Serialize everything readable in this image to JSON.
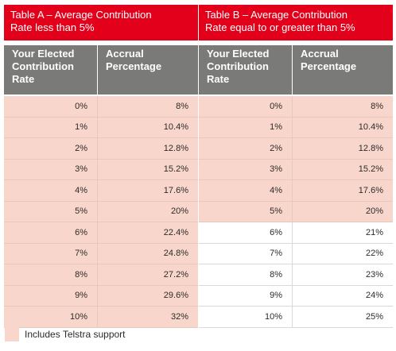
{
  "tableA": {
    "title_line1": "Table A – Average Contribution",
    "title_line2": "Rate less than 5%",
    "col1_line1": "Your Elected",
    "col1_line2": "Contribution",
    "col1_line3": "Rate",
    "col2_line1": "Accrual",
    "col2_line2": "Percentage",
    "rows": [
      {
        "rate": "0%",
        "accrual": "8%",
        "shaded": true
      },
      {
        "rate": "1%",
        "accrual": "10.4%",
        "shaded": true
      },
      {
        "rate": "2%",
        "accrual": "12.8%",
        "shaded": true
      },
      {
        "rate": "3%",
        "accrual": "15.2%",
        "shaded": true
      },
      {
        "rate": "4%",
        "accrual": "17.6%",
        "shaded": true
      },
      {
        "rate": "5%",
        "accrual": "20%",
        "shaded": true
      },
      {
        "rate": "6%",
        "accrual": "22.4%",
        "shaded": true
      },
      {
        "rate": "7%",
        "accrual": "24.8%",
        "shaded": true
      },
      {
        "rate": "8%",
        "accrual": "27.2%",
        "shaded": true
      },
      {
        "rate": "9%",
        "accrual": "29.6%",
        "shaded": true
      },
      {
        "rate": "10%",
        "accrual": "32%",
        "shaded": true
      }
    ]
  },
  "tableB": {
    "title_line1": "Table B – Average Contribution",
    "title_line2": "Rate equal to or greater than 5%",
    "col1_line1": "Your Elected",
    "col1_line2": "Contribution",
    "col1_line3": "Rate",
    "col2_line1": "Accrual",
    "col2_line2": "Percentage",
    "rows": [
      {
        "rate": "0%",
        "accrual": "8%",
        "shaded": true
      },
      {
        "rate": "1%",
        "accrual": "10.4%",
        "shaded": true
      },
      {
        "rate": "2%",
        "accrual": "12.8%",
        "shaded": true
      },
      {
        "rate": "3%",
        "accrual": "15.2%",
        "shaded": true
      },
      {
        "rate": "4%",
        "accrual": "17.6%",
        "shaded": true
      },
      {
        "rate": "5%",
        "accrual": "20%",
        "shaded": true
      },
      {
        "rate": "6%",
        "accrual": "21%",
        "shaded": false
      },
      {
        "rate": "7%",
        "accrual": "22%",
        "shaded": false
      },
      {
        "rate": "8%",
        "accrual": "23%",
        "shaded": false
      },
      {
        "rate": "9%",
        "accrual": "24%",
        "shaded": false
      },
      {
        "rate": "10%",
        "accrual": "25%",
        "shaded": false
      }
    ]
  },
  "legend": {
    "label": "Includes Telstra support"
  },
  "colors": {
    "title_bg": "#e3001b",
    "header_bg": "#7a7a78",
    "shaded_row": "#f9d6cb"
  }
}
